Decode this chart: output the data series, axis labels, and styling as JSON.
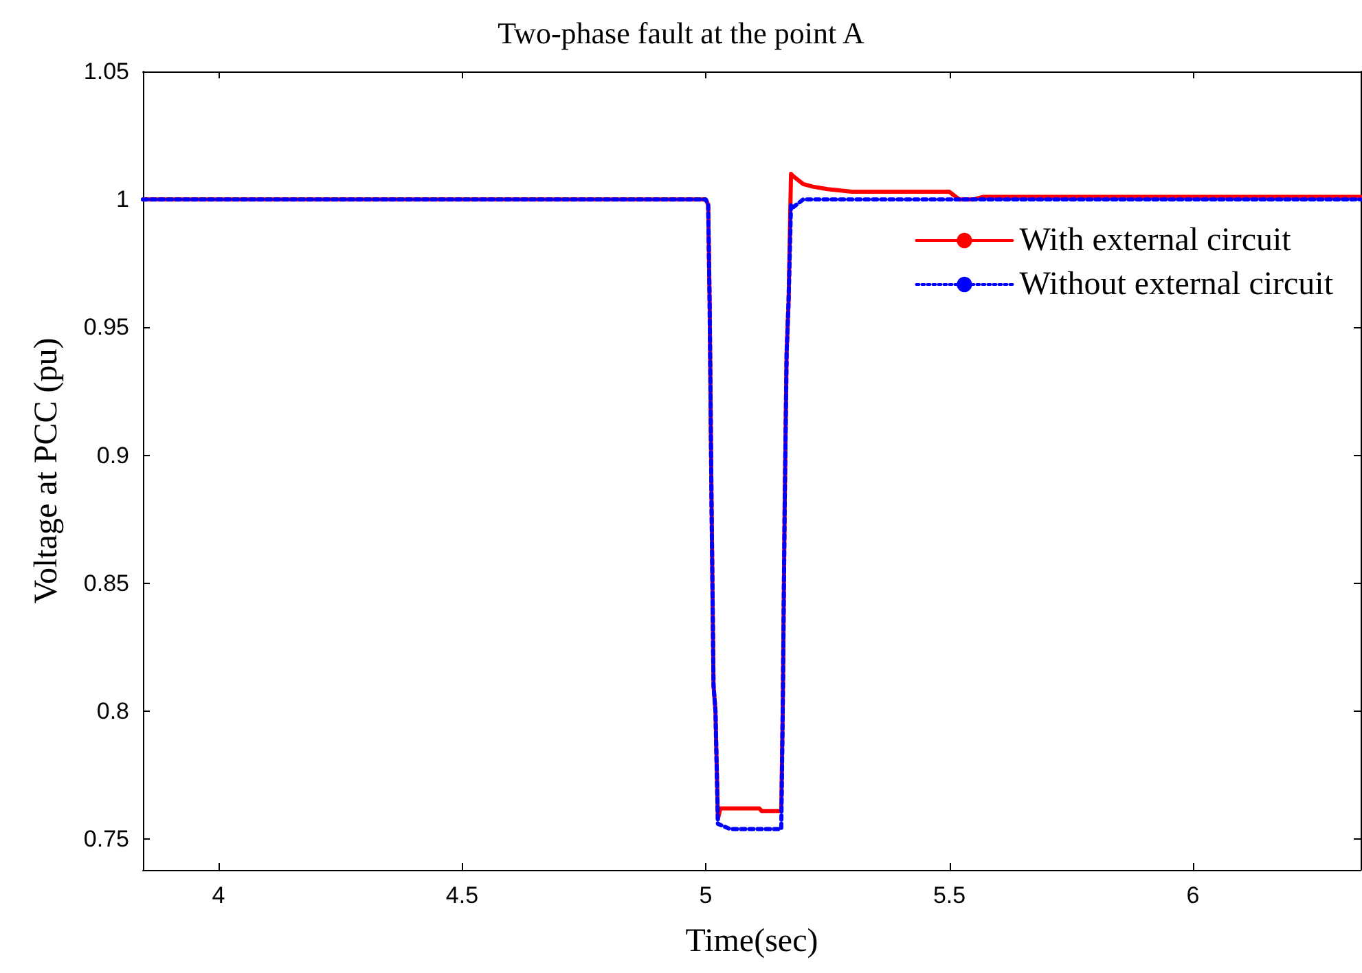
{
  "chart_data": {
    "type": "line",
    "title": "Two-phase fault at the point A",
    "xlabel": "Time(sec)",
    "ylabel": "Voltage at PCC (pu)",
    "xlim": [
      3.845,
      6.344
    ],
    "xticks": [
      4,
      4.5,
      5,
      5.5,
      6
    ],
    "ylim": [
      0.738,
      1.05
    ],
    "yticks": [
      0.75,
      0.8,
      0.85,
      0.9,
      0.95,
      1,
      1.05
    ],
    "grid": false,
    "legend": "top right",
    "marker": "none",
    "series": [
      {
        "name": "With external circuit",
        "color": "#ff0000",
        "line_style": "solid",
        "x": [
          3.845,
          5.0,
          5.005,
          5.008,
          5.012,
          5.016,
          5.02,
          5.025,
          5.03,
          5.11,
          5.115,
          5.155,
          5.158,
          5.162,
          5.166,
          5.17,
          5.175,
          5.18,
          5.2,
          5.22,
          5.25,
          5.3,
          5.5,
          5.52,
          5.55,
          5.57,
          6.344
        ],
        "values": [
          1,
          1,
          0.998,
          0.96,
          0.88,
          0.81,
          0.8,
          0.758,
          0.762,
          0.762,
          0.761,
          0.761,
          0.8,
          0.88,
          0.94,
          0.96,
          1.01,
          1.009,
          1.006,
          1.005,
          1.004,
          1.003,
          1.003,
          1.0,
          1.0,
          1.001,
          1.001
        ]
      },
      {
        "name": "Without external circuit",
        "color": "#0000ff",
        "line_style": "dotted",
        "x": [
          3.845,
          5.0,
          5.005,
          5.008,
          5.012,
          5.016,
          5.02,
          5.025,
          5.05,
          5.155,
          5.158,
          5.162,
          5.166,
          5.17,
          5.175,
          5.18,
          5.2,
          6.344
        ],
        "values": [
          1,
          1,
          0.998,
          0.96,
          0.88,
          0.81,
          0.8,
          0.756,
          0.754,
          0.754,
          0.8,
          0.88,
          0.94,
          0.96,
          0.998,
          0.997,
          1.0,
          1.0
        ]
      }
    ]
  }
}
